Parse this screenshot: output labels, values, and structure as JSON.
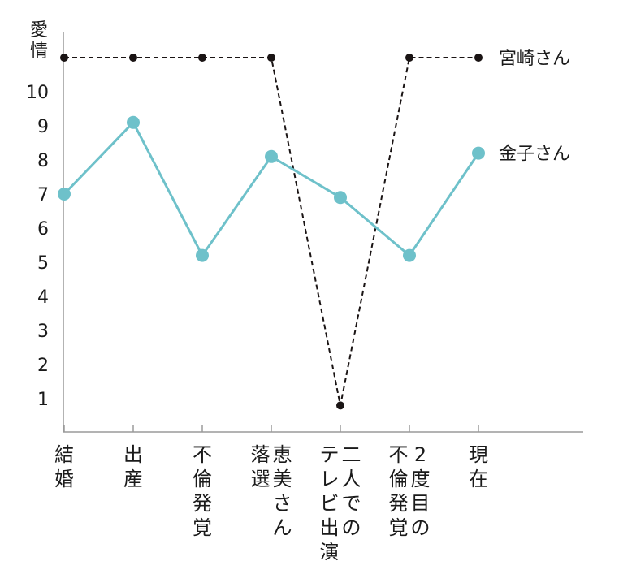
{
  "chart_data": {
    "type": "line",
    "ylabel": "愛情",
    "yticks": [
      1,
      2,
      3,
      4,
      5,
      6,
      7,
      8,
      9,
      10
    ],
    "ylim": [
      0,
      11
    ],
    "categories": [
      [
        "結婚"
      ],
      [
        "出産"
      ],
      [
        "不倫発覚"
      ],
      [
        "落選",
        "恵美さん"
      ],
      [
        "テレビ出演",
        "二人での"
      ],
      [
        "不倫発覚",
        "2度目の"
      ],
      [
        "現在"
      ]
    ],
    "series": [
      {
        "name": "宮崎さん",
        "values": [
          11,
          11,
          11,
          11,
          0.8,
          11,
          11
        ],
        "color": "#1a1414",
        "style": "dashed",
        "marker": "small-dot"
      },
      {
        "name": "金子さん",
        "values": [
          7,
          9.1,
          5.2,
          8.1,
          6.9,
          5.2,
          8.2
        ],
        "color": "#6ec1ca",
        "style": "solid",
        "marker": "large-dot"
      }
    ],
    "grid": false,
    "legend": "right, inline at line ends"
  }
}
